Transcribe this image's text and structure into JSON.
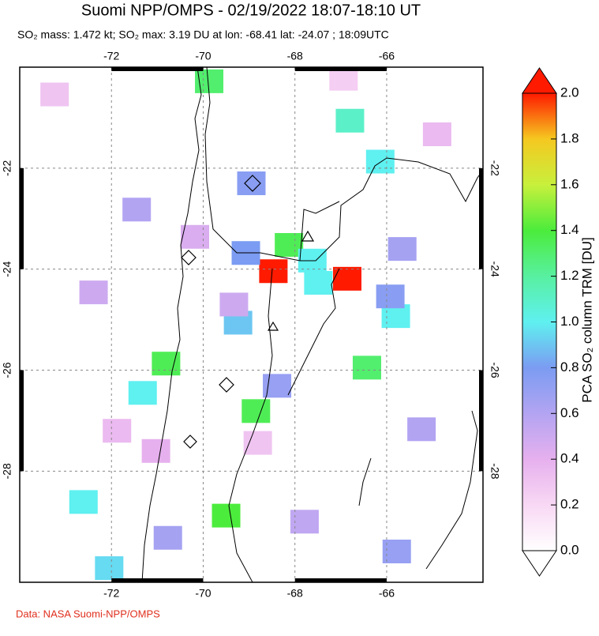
{
  "header": {
    "title": "Suomi NPP/OMPS - 02/19/2022 18:07-18:10 UT",
    "subtitle": "SO₂ mass: 1.472 kt; SO₂ max: 3.19 DU at lon: -68.41 lat: -24.07 ; 18:09UTC"
  },
  "map": {
    "lonlim": [
      -74,
      -63.9
    ],
    "latlim": [
      -20,
      -30.2
    ],
    "lon_ticks": [
      -72,
      -70,
      -68,
      -66
    ],
    "lat_ticks": [
      -22,
      -24,
      -26,
      -28
    ],
    "pixels": [
      {
        "lon": -68.47,
        "lat": -24.04,
        "value": 2.0
      },
      {
        "lon": -66.86,
        "lat": -24.19,
        "value": 2.0
      },
      {
        "lon": -69.87,
        "lat": -20.28,
        "value": 1.3
      },
      {
        "lon": -66.8,
        "lat": -21.06,
        "value": 1.1
      },
      {
        "lon": -66.14,
        "lat": -21.87,
        "value": 1.0
      },
      {
        "lon": -68.95,
        "lat": -22.3,
        "value": 0.75
      },
      {
        "lon": -68.13,
        "lat": -23.52,
        "value": 1.35
      },
      {
        "lon": -67.62,
        "lat": -23.83,
        "value": 1.0
      },
      {
        "lon": -67.49,
        "lat": -24.27,
        "value": 1.0
      },
      {
        "lon": -69.07,
        "lat": -23.68,
        "value": 0.8
      },
      {
        "lon": -69.24,
        "lat": -25.06,
        "value": 0.9
      },
      {
        "lon": -68.39,
        "lat": -26.31,
        "value": 0.7
      },
      {
        "lon": -70.81,
        "lat": -25.87,
        "value": 1.35
      },
      {
        "lon": -71.32,
        "lat": -26.45,
        "value": 1.0
      },
      {
        "lon": -68.85,
        "lat": -26.81,
        "value": 1.35
      },
      {
        "lon": -69.5,
        "lat": -28.88,
        "value": 1.4
      },
      {
        "lon": -72.61,
        "lat": -28.61,
        "value": 1.0
      },
      {
        "lon": -72.05,
        "lat": -29.92,
        "value": 0.95
      },
      {
        "lon": -66.43,
        "lat": -25.95,
        "value": 1.3
      },
      {
        "lon": -65.8,
        "lat": -24.93,
        "value": 1.0
      },
      {
        "lon": -65.92,
        "lat": -24.54,
        "value": 0.75
      },
      {
        "lon": -65.66,
        "lat": -23.6,
        "value": 0.65
      },
      {
        "lon": -71.45,
        "lat": -22.82,
        "value": 0.6
      },
      {
        "lon": -72.39,
        "lat": -24.46,
        "value": 0.5
      },
      {
        "lon": -70.77,
        "lat": -29.32,
        "value": 0.65
      },
      {
        "lon": -65.24,
        "lat": -27.17,
        "value": 0.6
      },
      {
        "lon": -67.79,
        "lat": -29.0,
        "value": 0.55
      },
      {
        "lon": -65.78,
        "lat": -29.59,
        "value": 0.7
      },
      {
        "lon": -70.18,
        "lat": -23.36,
        "value": 0.45
      },
      {
        "lon": -69.33,
        "lat": -24.7,
        "value": 0.5
      },
      {
        "lon": -73.24,
        "lat": -20.54,
        "value": 0.3
      },
      {
        "lon": -68.81,
        "lat": -27.44,
        "value": 0.3
      },
      {
        "lon": -64.9,
        "lat": -21.33,
        "value": 0.35
      },
      {
        "lon": -66.94,
        "lat": -20.23,
        "value": 0.25
      },
      {
        "lon": -71.03,
        "lat": -27.6,
        "value": 0.4
      },
      {
        "lon": -71.88,
        "lat": -27.2,
        "value": 0.35
      }
    ]
  },
  "colorbar": {
    "label": "PCA SO₂ column TRM [DU]",
    "lim": [
      0,
      2
    ],
    "ticks": [
      {
        "value": 0,
        "label": "0.0"
      },
      {
        "value": 0.2,
        "label": "0.2"
      },
      {
        "value": 0.4,
        "label": "0.4"
      },
      {
        "value": 0.6,
        "label": "0.6"
      },
      {
        "value": 0.8,
        "label": "0.8"
      },
      {
        "value": 1,
        "label": "1.0"
      },
      {
        "value": 1.2,
        "label": "1.2"
      },
      {
        "value": 1.4,
        "label": "1.4"
      },
      {
        "value": 1.6,
        "label": "1.6"
      },
      {
        "value": 1.8,
        "label": "1.8"
      },
      {
        "value": 2,
        "label": "2.0"
      }
    ]
  },
  "footer": "Data: NASA Suomi-NPP/OMPS"
}
